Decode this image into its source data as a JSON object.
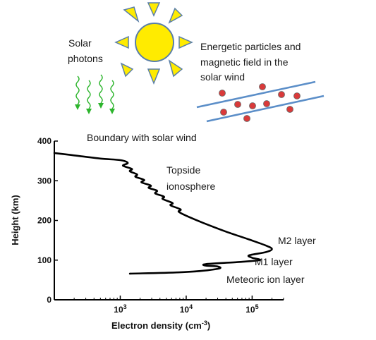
{
  "labels": {
    "solar_photons_line1": "Solar",
    "solar_photons_line2": "photons",
    "wind_line1": "Energetic particles and",
    "wind_line2": "magnetic  field in the",
    "wind_line3": "solar wind",
    "boundary": "Boundary with solar wind",
    "topside_line1": "Topside",
    "topside_line2": "ionosphere",
    "m2": "M2 layer",
    "m1": "M1 layer",
    "meteoric": "Meteoric ion layer"
  },
  "colors": {
    "sun_fill": "#ffeb00",
    "sun_stroke": "#5a7fa8",
    "photon_wave": "#2db52d",
    "wind_line": "#5b8ec8",
    "particle_fill": "#d93a3a",
    "curve": "#000000"
  },
  "chart_data": {
    "type": "line",
    "xlabel": "Electron density (cm",
    "xlabel_sup": "-3",
    "xlabel_close": ")",
    "ylabel": "Height (km)",
    "x_scale": "log",
    "xlim": [
      100,
      300000
    ],
    "ylim": [
      0,
      400
    ],
    "x_ticks": [
      {
        "value": 1000,
        "base": "10",
        "exp": "3"
      },
      {
        "value": 10000,
        "base": "10",
        "exp": "4"
      },
      {
        "value": 100000,
        "base": "10",
        "exp": "5"
      }
    ],
    "y_ticks": [
      {
        "value": 0,
        "label": "0"
      },
      {
        "value": 100,
        "label": "100"
      },
      {
        "value": 200,
        "label": "200"
      },
      {
        "value": 300,
        "label": "300"
      },
      {
        "value": 400,
        "label": "400"
      }
    ],
    "series": [
      {
        "x": [
          100,
          200,
          500,
          1000,
          1300,
          1100,
          1500,
          1400,
          1800,
          1700,
          2300,
          2100,
          2900,
          2700,
          3600,
          3400,
          4600,
          4400,
          6200,
          5800,
          8200,
          7700,
          10000,
          18000,
          40000,
          90000,
          160000,
          200000,
          160000,
          90000,
          100000,
          130000,
          60000,
          20000,
          20000,
          30000,
          30000,
          10000,
          1400
        ],
        "y": [
          370,
          364,
          356,
          352,
          345,
          338,
          330,
          324,
          316,
          310,
          302,
          296,
          288,
          282,
          275,
          268,
          260,
          254,
          244,
          238,
          228,
          222,
          212,
          194,
          172,
          152,
          137,
          128,
          120,
          112,
          106,
          100,
          95,
          90,
          86,
          84,
          78,
          70,
          66
        ]
      }
    ]
  }
}
